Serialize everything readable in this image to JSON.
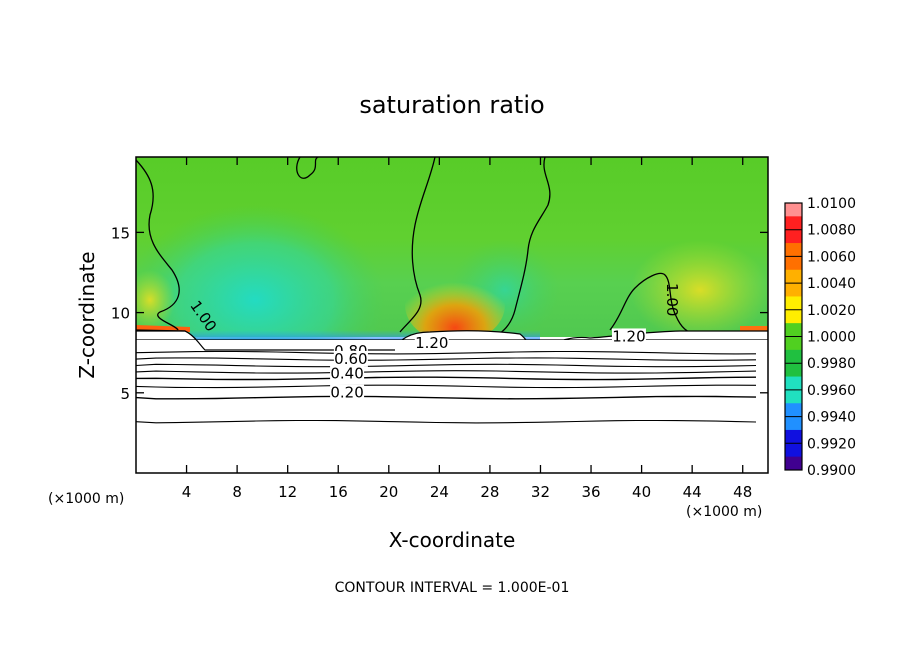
{
  "chart_data": {
    "type": "heatmap",
    "title": "saturation ratio",
    "xlabel": "X-coordinate",
    "ylabel": "Z-coordinate",
    "x_unit_label": "(×1000 m)",
    "x_unit_label_right": "(×1000 m)",
    "xlim": [
      0,
      50
    ],
    "ylim": [
      0,
      19.7
    ],
    "x_ticks": [
      4,
      8,
      12,
      16,
      20,
      24,
      28,
      32,
      36,
      40,
      44,
      48
    ],
    "y_ticks": [
      5,
      10,
      15
    ],
    "grid": false,
    "colorbar": {
      "position": "right",
      "levels": [
        "1.0100",
        "1.0080",
        "1.0060",
        "1.0040",
        "1.0020",
        "1.0000",
        "0.9980",
        "0.9960",
        "0.9940",
        "0.9920",
        "0.9900"
      ],
      "colors": [
        "#ff9090",
        "#ff2020",
        "#ff7000",
        "#ffb000",
        "#ffee00",
        "#50d020",
        "#20c040",
        "#20e0c0",
        "#2090ff",
        "#1010e0",
        "#400090"
      ]
    },
    "contour_labels": [
      {
        "text": "1.20",
        "x": 23.4,
        "z": 7.8
      },
      {
        "text": "1.20",
        "x": 39.0,
        "z": 8.2
      },
      {
        "text": "1.00",
        "x": 42.0,
        "z": 10.8
      },
      {
        "text": "1.00",
        "x": 5.0,
        "z": 9.6
      },
      {
        "text": "0.80",
        "x": 17.0,
        "z": 7.3
      },
      {
        "text": "0.60",
        "x": 17.0,
        "z": 6.8
      },
      {
        "text": "0.40",
        "x": 16.7,
        "z": 5.9
      },
      {
        "text": "0.20",
        "x": 16.7,
        "z": 4.7
      }
    ],
    "contour_levels_below": [
      {
        "value": 1.2,
        "z": 8.5
      },
      {
        "value": 0.8,
        "z": 7.5
      },
      {
        "value": 0.7,
        "z": 7.1
      },
      {
        "value": 0.6,
        "z": 6.7
      },
      {
        "value": 0.5,
        "z": 6.3
      },
      {
        "value": 0.4,
        "z": 5.9
      },
      {
        "value": 0.3,
        "z": 5.4
      },
      {
        "value": 0.2,
        "z": 4.7
      },
      {
        "value": 0.1,
        "z": 3.2
      }
    ]
  },
  "footer": {
    "contour_interval": "CONTOUR INTERVAL = 1.000E-01"
  }
}
